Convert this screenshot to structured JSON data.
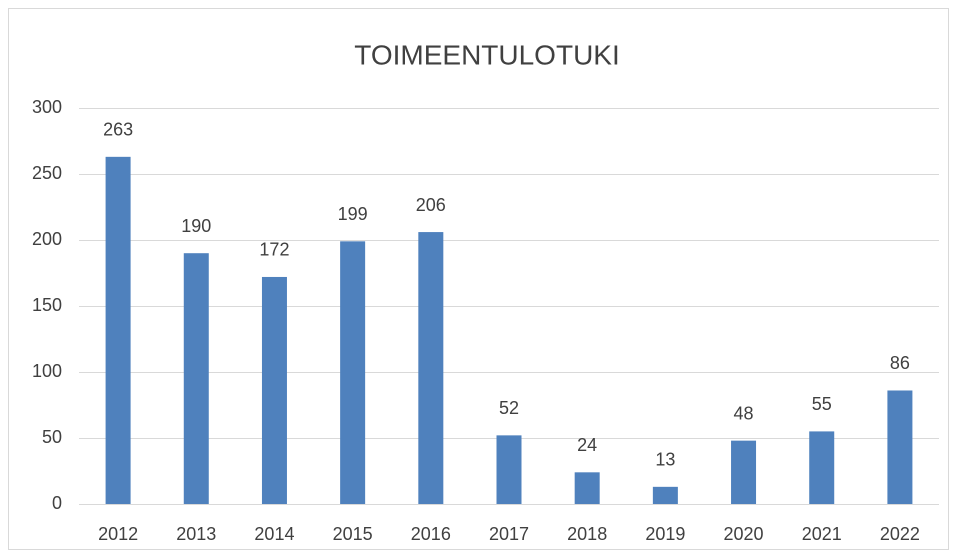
{
  "chart_data": {
    "type": "bar",
    "title": "TOIMEENTULOTUKI",
    "categories": [
      "2012",
      "2013",
      "2014",
      "2015",
      "2016",
      "2017",
      "2018",
      "2019",
      "2020",
      "2021",
      "2022"
    ],
    "values": [
      263,
      190,
      172,
      199,
      206,
      52,
      24,
      13,
      48,
      55,
      86
    ],
    "color": "#4f81bd",
    "ylim": [
      0,
      300
    ],
    "yticks": [
      0,
      50,
      100,
      150,
      200,
      250,
      300
    ],
    "grid": true,
    "data_labels": true
  }
}
